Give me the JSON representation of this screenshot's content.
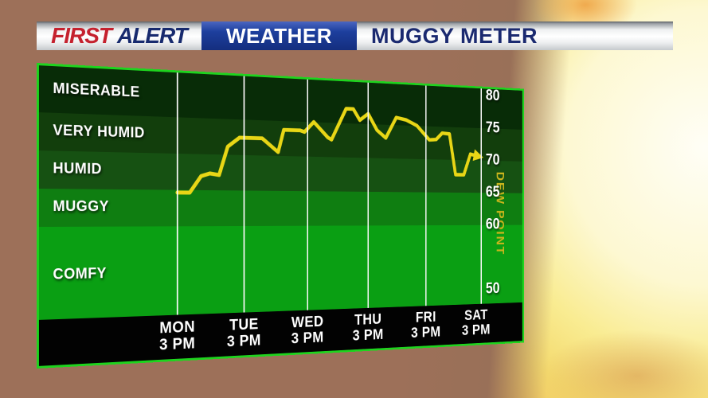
{
  "header": {
    "brand_first": "FIRST",
    "brand_alert": "ALERT",
    "brand_weather": "WEATHER",
    "title": "MUGGY METER"
  },
  "chart_data": {
    "type": "line",
    "title": "MUGGY METER",
    "ylabel": "DEW POINT",
    "y_axis": {
      "ticks": [
        80,
        75,
        70,
        65,
        60,
        50
      ],
      "top_value": 81,
      "bottom_value": 47.7,
      "grid": "vertical-day-lines-only",
      "tick_color": "#ffffff"
    },
    "bands": [
      {
        "label": "MISERABLE",
        "hi": 81,
        "lo": 75,
        "label_v": 78,
        "color": "#082c07"
      },
      {
        "label": "VERY HUMID",
        "hi": 75,
        "lo": 70,
        "label_v": 72.5,
        "color": "#123e0c"
      },
      {
        "label": "HUMID",
        "hi": 70,
        "lo": 65,
        "label_v": 67.5,
        "color": "#165112"
      },
      {
        "label": "MUGGY",
        "hi": 65,
        "lo": 60,
        "label_v": 62.5,
        "color": "#0f7e11"
      },
      {
        "label": "COMFY",
        "hi": 60,
        "lo": 47.7,
        "label_v": 53.5,
        "color": "#0a9f13"
      }
    ],
    "x_categories": [
      {
        "day": "MON",
        "time": "3 PM"
      },
      {
        "day": "TUE",
        "time": "3 PM"
      },
      {
        "day": "WED",
        "time": "3 PM"
      },
      {
        "day": "THU",
        "time": "3 PM"
      },
      {
        "day": "FRI",
        "time": "3 PM"
      },
      {
        "day": "SAT",
        "time": "3 PM"
      }
    ],
    "series": [
      {
        "name": "Dew Point",
        "color": "#e8d616",
        "ends_with_arrow": true,
        "points": [
          {
            "d": 0.0,
            "v": 64.5
          },
          {
            "d": 0.18,
            "v": 64.5
          },
          {
            "d": 0.35,
            "v": 66.8
          },
          {
            "d": 0.48,
            "v": 67.2
          },
          {
            "d": 0.62,
            "v": 67.0
          },
          {
            "d": 0.75,
            "v": 71.0
          },
          {
            "d": 0.93,
            "v": 72.3
          },
          {
            "d": 1.28,
            "v": 72.3
          },
          {
            "d": 1.53,
            "v": 70.4
          },
          {
            "d": 1.62,
            "v": 73.6
          },
          {
            "d": 1.88,
            "v": 73.6
          },
          {
            "d": 1.95,
            "v": 73.4
          },
          {
            "d": 2.1,
            "v": 74.9
          },
          {
            "d": 2.33,
            "v": 72.7
          },
          {
            "d": 2.39,
            "v": 72.4
          },
          {
            "d": 2.63,
            "v": 77.0
          },
          {
            "d": 2.75,
            "v": 77.0
          },
          {
            "d": 2.86,
            "v": 75.4
          },
          {
            "d": 3.0,
            "v": 76.4
          },
          {
            "d": 3.15,
            "v": 74.0
          },
          {
            "d": 3.3,
            "v": 72.9
          },
          {
            "d": 3.48,
            "v": 76.0
          },
          {
            "d": 3.65,
            "v": 75.7
          },
          {
            "d": 3.84,
            "v": 74.9
          },
          {
            "d": 4.06,
            "v": 72.8
          },
          {
            "d": 4.18,
            "v": 72.9
          },
          {
            "d": 4.29,
            "v": 73.9
          },
          {
            "d": 4.42,
            "v": 73.8
          },
          {
            "d": 4.53,
            "v": 67.6
          },
          {
            "d": 4.68,
            "v": 67.6
          },
          {
            "d": 4.8,
            "v": 70.8
          },
          {
            "d": 4.95,
            "v": 70.5
          }
        ]
      }
    ],
    "colors": {
      "panel_border": "#1ed41e",
      "grid_line": "#f8f8f8",
      "x_band_background": "#020202",
      "ylabel_text": "#c9b51c",
      "band_label_text": "#ffffff"
    }
  }
}
